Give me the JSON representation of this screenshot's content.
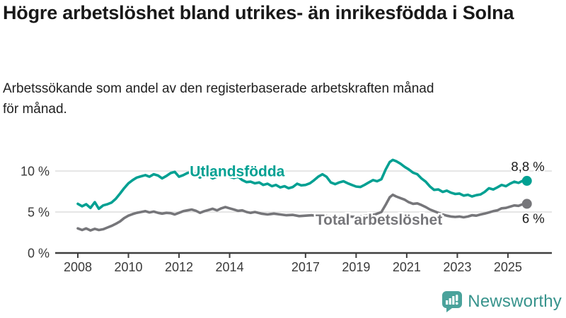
{
  "header": {
    "title": "Högre arbetslöshet bland utrikes- än inrikesfödda i Solna",
    "subtitle": "Arbetssökande som andel av den registerbaserade arbetskraften månad för månad."
  },
  "chart_data": {
    "type": "line",
    "unit": "%",
    "grid": true,
    "xlabel": "",
    "ylabel": "",
    "ylim": [
      0,
      12.3
    ],
    "xlim": [
      2008,
      2025.75
    ],
    "y_ticks": [
      {
        "value": 0,
        "label": "0 %"
      },
      {
        "value": 5,
        "label": "5 %"
      },
      {
        "value": 10,
        "label": "10 %"
      }
    ],
    "x_ticks": [
      {
        "year": 2008,
        "label": "2008"
      },
      {
        "year": 2010,
        "label": "2010"
      },
      {
        "year": 2012,
        "label": "2012"
      },
      {
        "year": 2014,
        "label": "2014"
      },
      {
        "year": 2017,
        "label": "2017"
      },
      {
        "year": 2019,
        "label": "2019"
      },
      {
        "year": 2021,
        "label": "2021"
      },
      {
        "year": 2023,
        "label": "2023"
      },
      {
        "year": 2025,
        "label": "2025"
      }
    ],
    "series": [
      {
        "name": "Utlandsfödda",
        "color": "#00a092",
        "end_label": "8,8 %",
        "end_value": 8.8,
        "label_at": [
          2014.3,
          9.95
        ],
        "points": [
          [
            2008.0,
            6.0
          ],
          [
            2008.17,
            5.7
          ],
          [
            2008.33,
            5.95
          ],
          [
            2008.5,
            5.5
          ],
          [
            2008.67,
            6.2
          ],
          [
            2008.83,
            5.4
          ],
          [
            2009.0,
            5.8
          ],
          [
            2009.17,
            5.95
          ],
          [
            2009.33,
            6.15
          ],
          [
            2009.5,
            6.6
          ],
          [
            2009.67,
            7.25
          ],
          [
            2009.83,
            7.9
          ],
          [
            2010.0,
            8.5
          ],
          [
            2010.17,
            8.9
          ],
          [
            2010.33,
            9.2
          ],
          [
            2010.5,
            9.35
          ],
          [
            2010.67,
            9.5
          ],
          [
            2010.83,
            9.3
          ],
          [
            2011.0,
            9.6
          ],
          [
            2011.17,
            9.45
          ],
          [
            2011.33,
            9.1
          ],
          [
            2011.5,
            9.4
          ],
          [
            2011.67,
            9.75
          ],
          [
            2011.83,
            9.9
          ],
          [
            2012.0,
            9.3
          ],
          [
            2012.17,
            9.5
          ],
          [
            2012.33,
            9.75
          ],
          [
            2012.5,
            9.9
          ],
          [
            2012.67,
            9.6
          ],
          [
            2012.83,
            9.2
          ],
          [
            2013.0,
            9.55
          ],
          [
            2013.17,
            9.4
          ],
          [
            2013.33,
            9.1
          ],
          [
            2013.5,
            9.3
          ],
          [
            2013.67,
            9.55
          ],
          [
            2013.83,
            9.6
          ],
          [
            2014.0,
            9.3
          ],
          [
            2014.17,
            9.15
          ],
          [
            2014.33,
            9.3
          ],
          [
            2014.5,
            8.9
          ],
          [
            2014.67,
            8.65
          ],
          [
            2014.83,
            8.7
          ],
          [
            2015.0,
            8.5
          ],
          [
            2015.17,
            8.6
          ],
          [
            2015.33,
            8.3
          ],
          [
            2015.5,
            8.45
          ],
          [
            2015.67,
            8.15
          ],
          [
            2015.83,
            8.3
          ],
          [
            2016.0,
            8.0
          ],
          [
            2016.17,
            8.15
          ],
          [
            2016.33,
            7.9
          ],
          [
            2016.5,
            8.05
          ],
          [
            2016.67,
            8.45
          ],
          [
            2016.83,
            8.25
          ],
          [
            2017.0,
            8.3
          ],
          [
            2017.17,
            8.5
          ],
          [
            2017.33,
            8.85
          ],
          [
            2017.5,
            9.3
          ],
          [
            2017.67,
            9.6
          ],
          [
            2017.83,
            9.3
          ],
          [
            2018.0,
            8.6
          ],
          [
            2018.17,
            8.4
          ],
          [
            2018.33,
            8.6
          ],
          [
            2018.5,
            8.75
          ],
          [
            2018.67,
            8.5
          ],
          [
            2018.83,
            8.3
          ],
          [
            2019.0,
            8.1
          ],
          [
            2019.17,
            8.05
          ],
          [
            2019.33,
            8.3
          ],
          [
            2019.5,
            8.6
          ],
          [
            2019.67,
            8.9
          ],
          [
            2019.83,
            8.75
          ],
          [
            2020.0,
            9.0
          ],
          [
            2020.17,
            10.2
          ],
          [
            2020.33,
            11.1
          ],
          [
            2020.45,
            11.35
          ],
          [
            2020.58,
            11.2
          ],
          [
            2020.75,
            10.9
          ],
          [
            2020.92,
            10.5
          ],
          [
            2021.08,
            10.2
          ],
          [
            2021.25,
            9.8
          ],
          [
            2021.42,
            9.6
          ],
          [
            2021.58,
            9.1
          ],
          [
            2021.75,
            8.7
          ],
          [
            2021.92,
            8.1
          ],
          [
            2022.08,
            7.7
          ],
          [
            2022.25,
            7.75
          ],
          [
            2022.42,
            7.45
          ],
          [
            2022.58,
            7.6
          ],
          [
            2022.75,
            7.35
          ],
          [
            2022.92,
            7.2
          ],
          [
            2023.08,
            7.25
          ],
          [
            2023.25,
            7.0
          ],
          [
            2023.42,
            7.1
          ],
          [
            2023.58,
            6.9
          ],
          [
            2023.75,
            7.05
          ],
          [
            2023.92,
            7.15
          ],
          [
            2024.08,
            7.45
          ],
          [
            2024.25,
            7.9
          ],
          [
            2024.42,
            7.75
          ],
          [
            2024.58,
            8.0
          ],
          [
            2024.75,
            8.3
          ],
          [
            2024.92,
            8.15
          ],
          [
            2025.08,
            8.45
          ],
          [
            2025.25,
            8.7
          ],
          [
            2025.42,
            8.55
          ],
          [
            2025.58,
            8.8
          ],
          [
            2025.75,
            8.8
          ]
        ]
      },
      {
        "name": "Total arbetslöshet",
        "color": "#76767a",
        "end_label": "6 %",
        "end_value": 6.0,
        "label_at": [
          2019.9,
          4.05
        ],
        "points": [
          [
            2008.0,
            3.0
          ],
          [
            2008.17,
            2.8
          ],
          [
            2008.33,
            3.0
          ],
          [
            2008.5,
            2.75
          ],
          [
            2008.67,
            2.95
          ],
          [
            2008.83,
            2.8
          ],
          [
            2009.0,
            2.9
          ],
          [
            2009.17,
            3.1
          ],
          [
            2009.33,
            3.3
          ],
          [
            2009.5,
            3.55
          ],
          [
            2009.67,
            3.85
          ],
          [
            2009.83,
            4.25
          ],
          [
            2010.0,
            4.55
          ],
          [
            2010.17,
            4.75
          ],
          [
            2010.33,
            4.9
          ],
          [
            2010.5,
            5.0
          ],
          [
            2010.67,
            5.1
          ],
          [
            2010.83,
            4.95
          ],
          [
            2011.0,
            5.05
          ],
          [
            2011.17,
            4.9
          ],
          [
            2011.33,
            4.8
          ],
          [
            2011.5,
            4.9
          ],
          [
            2011.67,
            4.85
          ],
          [
            2011.83,
            4.7
          ],
          [
            2012.0,
            4.9
          ],
          [
            2012.17,
            5.1
          ],
          [
            2012.33,
            5.2
          ],
          [
            2012.5,
            5.3
          ],
          [
            2012.67,
            5.15
          ],
          [
            2012.83,
            4.9
          ],
          [
            2013.0,
            5.1
          ],
          [
            2013.17,
            5.25
          ],
          [
            2013.33,
            5.4
          ],
          [
            2013.5,
            5.2
          ],
          [
            2013.67,
            5.45
          ],
          [
            2013.83,
            5.6
          ],
          [
            2014.0,
            5.45
          ],
          [
            2014.17,
            5.3
          ],
          [
            2014.33,
            5.15
          ],
          [
            2014.5,
            5.2
          ],
          [
            2014.67,
            5.0
          ],
          [
            2014.83,
            4.9
          ],
          [
            2015.0,
            5.0
          ],
          [
            2015.25,
            4.8
          ],
          [
            2015.5,
            4.7
          ],
          [
            2015.75,
            4.8
          ],
          [
            2016.0,
            4.7
          ],
          [
            2016.25,
            4.6
          ],
          [
            2016.5,
            4.65
          ],
          [
            2016.75,
            4.5
          ],
          [
            2017.0,
            4.55
          ],
          [
            2017.25,
            4.6
          ],
          [
            2017.5,
            4.5
          ],
          [
            2017.75,
            4.55
          ],
          [
            2018.0,
            4.45
          ],
          [
            2018.25,
            4.5
          ],
          [
            2018.5,
            4.4
          ],
          [
            2018.75,
            4.45
          ],
          [
            2019.0,
            4.4
          ],
          [
            2019.25,
            4.5
          ],
          [
            2019.5,
            4.55
          ],
          [
            2019.75,
            4.7
          ],
          [
            2020.0,
            5.0
          ],
          [
            2020.17,
            5.9
          ],
          [
            2020.33,
            6.8
          ],
          [
            2020.45,
            7.1
          ],
          [
            2020.58,
            6.9
          ],
          [
            2020.75,
            6.7
          ],
          [
            2020.92,
            6.5
          ],
          [
            2021.08,
            6.2
          ],
          [
            2021.25,
            6.0
          ],
          [
            2021.42,
            6.05
          ],
          [
            2021.58,
            5.85
          ],
          [
            2021.75,
            5.6
          ],
          [
            2021.92,
            5.3
          ],
          [
            2022.08,
            5.1
          ],
          [
            2022.25,
            4.9
          ],
          [
            2022.42,
            4.7
          ],
          [
            2022.58,
            4.55
          ],
          [
            2022.75,
            4.45
          ],
          [
            2022.92,
            4.4
          ],
          [
            2023.08,
            4.45
          ],
          [
            2023.25,
            4.35
          ],
          [
            2023.42,
            4.45
          ],
          [
            2023.58,
            4.6
          ],
          [
            2023.75,
            4.55
          ],
          [
            2023.92,
            4.7
          ],
          [
            2024.08,
            4.8
          ],
          [
            2024.25,
            4.95
          ],
          [
            2024.42,
            5.1
          ],
          [
            2024.58,
            5.2
          ],
          [
            2024.75,
            5.45
          ],
          [
            2024.92,
            5.5
          ],
          [
            2025.08,
            5.65
          ],
          [
            2025.25,
            5.8
          ],
          [
            2025.42,
            5.75
          ],
          [
            2025.58,
            5.95
          ],
          [
            2025.75,
            6.0
          ]
        ]
      }
    ]
  },
  "footer": {
    "brand": "Newsworthy"
  },
  "colors": {
    "accent_teal": "#00a092",
    "series_gray": "#76767a",
    "gridline": "#d7d7d7",
    "axis": "#3f3f3f",
    "tick_label": "#3a3a3a",
    "end_label": "#1a1a1a",
    "logo_icon": "#4aa29b",
    "logo_text": "#37938c"
  }
}
